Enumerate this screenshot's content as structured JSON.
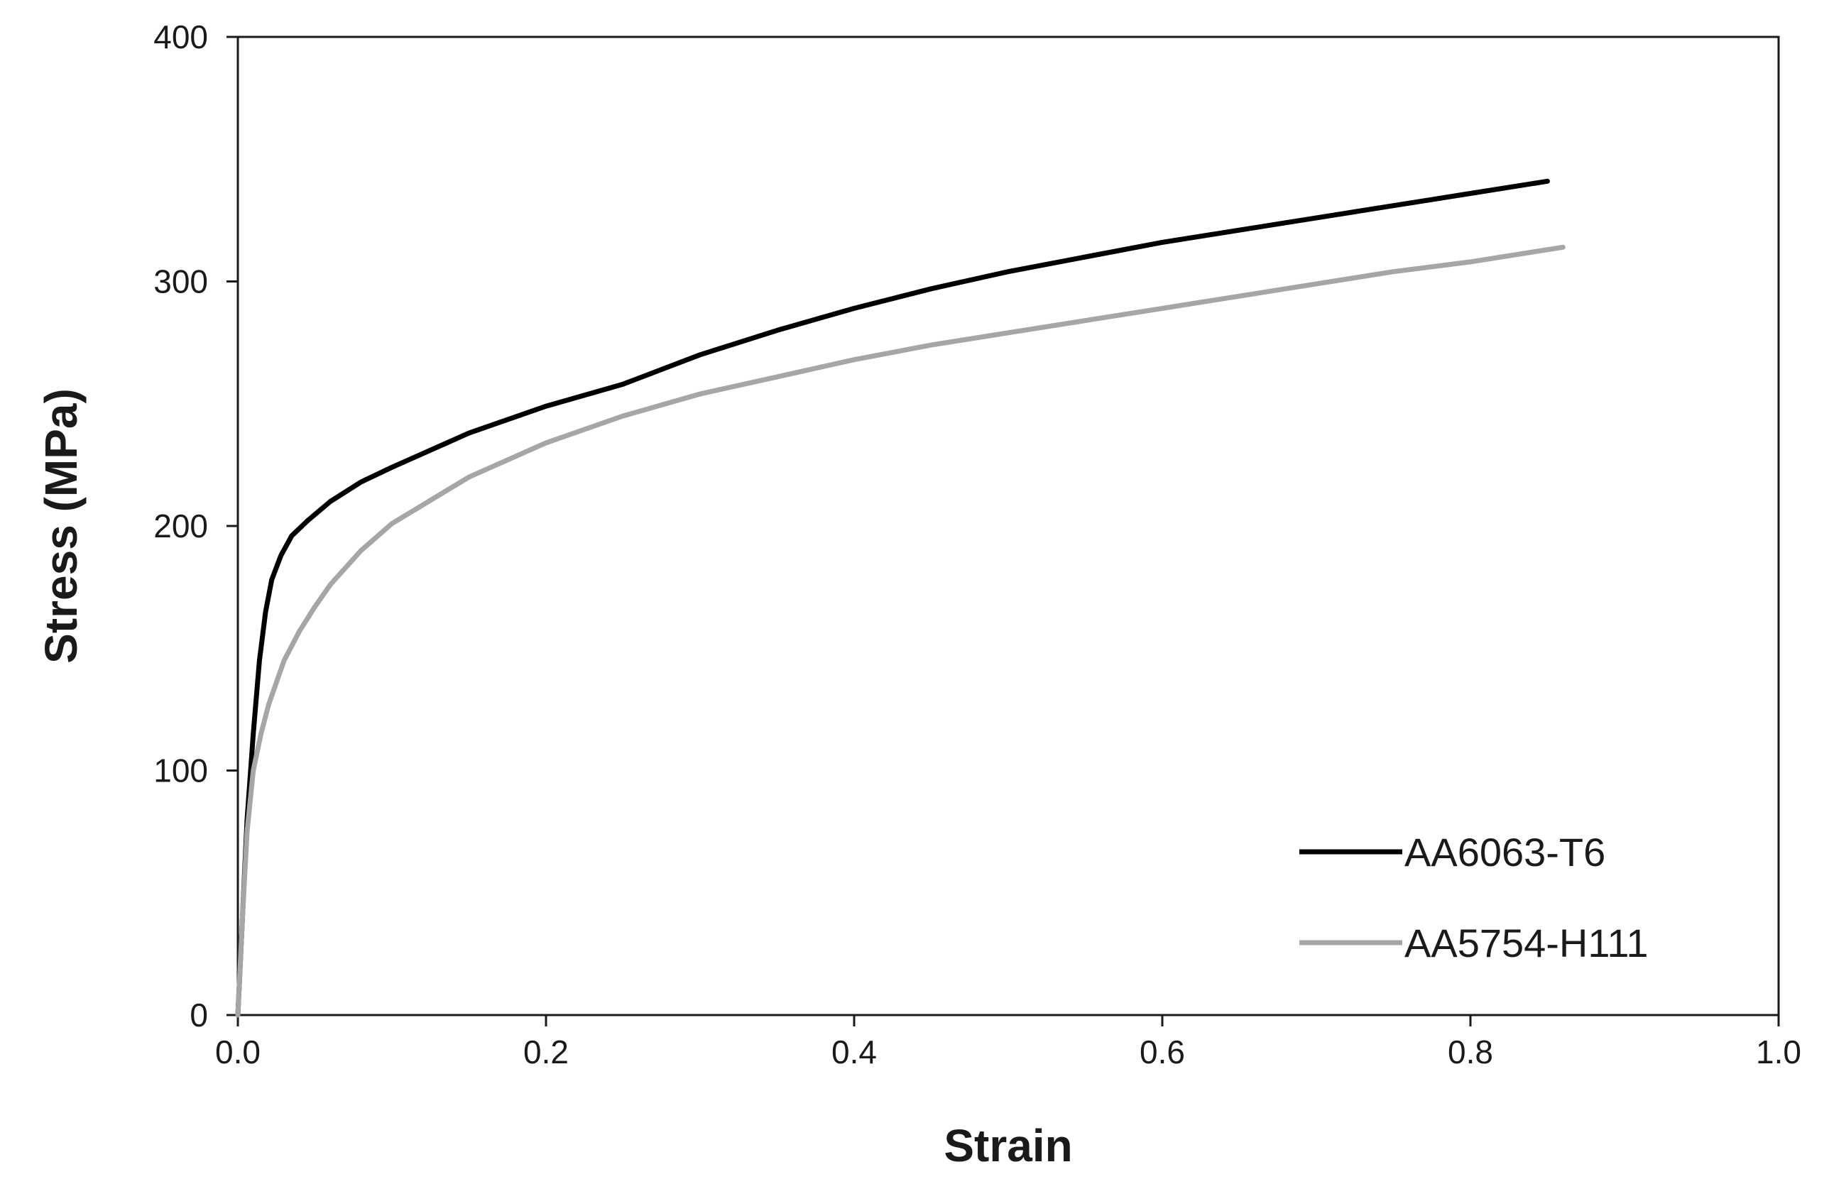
{
  "chart_data": {
    "type": "line",
    "xlabel": "Strain",
    "ylabel": "Stress (MPa)",
    "xlim": [
      0,
      1.0
    ],
    "ylim": [
      0,
      400
    ],
    "xticks": [
      "0.0",
      "0.2",
      "0.4",
      "0.6",
      "0.8",
      "1.0"
    ],
    "yticks": [
      "0",
      "100",
      "200",
      "300",
      "400"
    ],
    "grid": false,
    "legend_position": "bottom-right",
    "series": [
      {
        "name": "AA6063-T6",
        "color": "#000000",
        "points": [
          [
            0.0,
            0
          ],
          [
            0.003,
            40
          ],
          [
            0.006,
            80
          ],
          [
            0.01,
            115
          ],
          [
            0.014,
            145
          ],
          [
            0.018,
            165
          ],
          [
            0.022,
            178
          ],
          [
            0.028,
            188
          ],
          [
            0.035,
            196
          ],
          [
            0.045,
            202
          ],
          [
            0.06,
            210
          ],
          [
            0.08,
            218
          ],
          [
            0.1,
            224
          ],
          [
            0.15,
            238
          ],
          [
            0.2,
            249
          ],
          [
            0.25,
            258
          ],
          [
            0.3,
            270
          ],
          [
            0.35,
            280
          ],
          [
            0.4,
            289
          ],
          [
            0.45,
            297
          ],
          [
            0.5,
            304
          ],
          [
            0.55,
            310
          ],
          [
            0.6,
            316
          ],
          [
            0.65,
            321
          ],
          [
            0.7,
            326
          ],
          [
            0.75,
            331
          ],
          [
            0.8,
            336
          ],
          [
            0.85,
            341
          ]
        ]
      },
      {
        "name": "AA5754-H111",
        "color": "#a6a6a6",
        "points": [
          [
            0.0,
            0
          ],
          [
            0.003,
            40
          ],
          [
            0.006,
            75
          ],
          [
            0.01,
            100
          ],
          [
            0.015,
            115
          ],
          [
            0.02,
            127
          ],
          [
            0.03,
            145
          ],
          [
            0.04,
            157
          ],
          [
            0.05,
            167
          ],
          [
            0.06,
            176
          ],
          [
            0.08,
            190
          ],
          [
            0.1,
            201
          ],
          [
            0.15,
            220
          ],
          [
            0.2,
            234
          ],
          [
            0.25,
            245
          ],
          [
            0.3,
            254
          ],
          [
            0.35,
            261
          ],
          [
            0.4,
            268
          ],
          [
            0.45,
            274
          ],
          [
            0.5,
            279
          ],
          [
            0.55,
            284
          ],
          [
            0.6,
            289
          ],
          [
            0.65,
            294
          ],
          [
            0.7,
            299
          ],
          [
            0.75,
            304
          ],
          [
            0.8,
            308
          ],
          [
            0.86,
            314
          ]
        ]
      }
    ]
  }
}
